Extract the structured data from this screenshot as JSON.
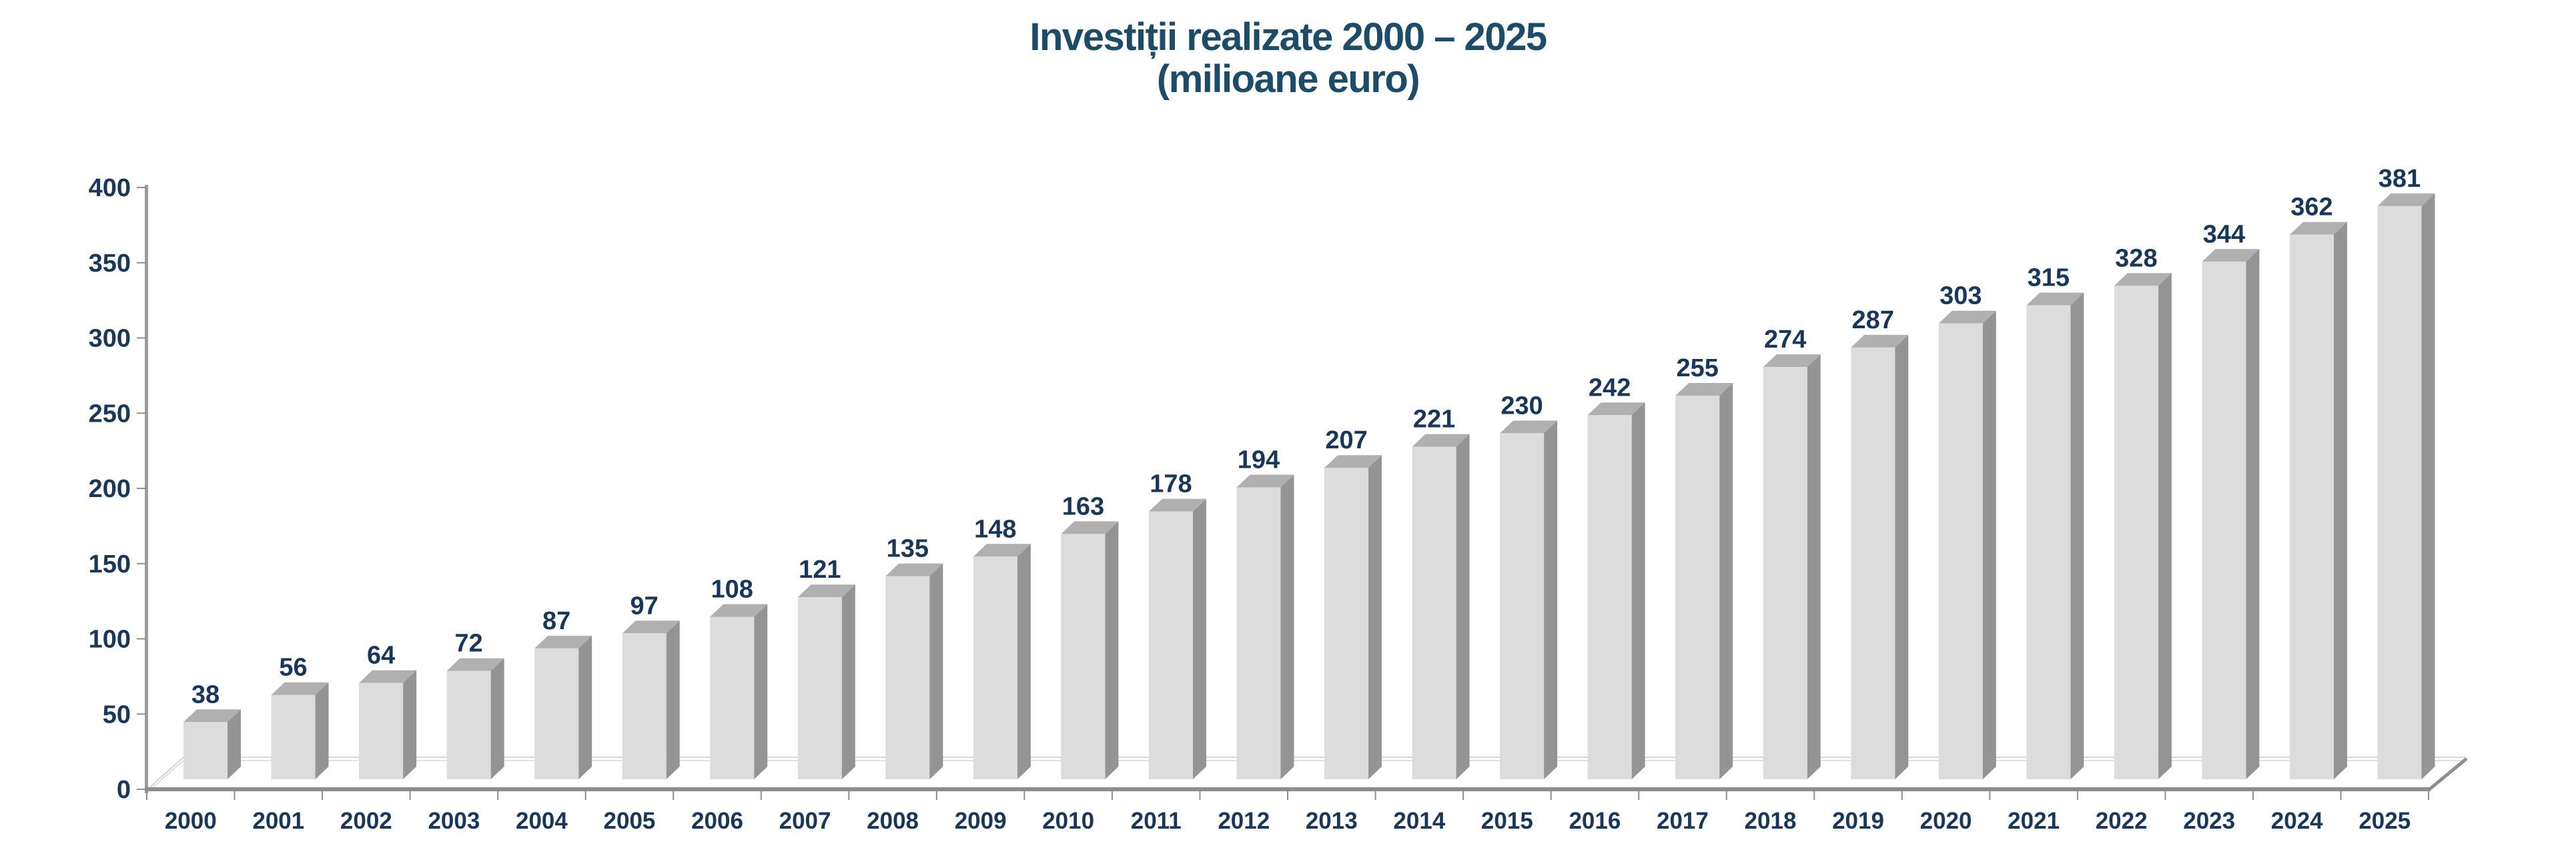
{
  "title": {
    "line1": "Investiții realizate 2000 – 2025",
    "line2": "(milioane euro)"
  },
  "chart_data": {
    "type": "bar",
    "effect": "3d-column",
    "title": "Investiții realizate 2000 – 2025",
    "subtitle": "(milioane euro)",
    "categories": [
      "2000",
      "2001",
      "2002",
      "2003",
      "2004",
      "2005",
      "2006",
      "2007",
      "2008",
      "2009",
      "2010",
      "2011",
      "2012",
      "2013",
      "2014",
      "2015",
      "2016",
      "2017",
      "2018",
      "2019",
      "2020",
      "2021",
      "2022",
      "2023",
      "2024",
      "2025"
    ],
    "values": [
      38,
      56,
      64,
      72,
      87,
      97,
      108,
      121,
      135,
      148,
      163,
      178,
      194,
      207,
      221,
      230,
      242,
      255,
      274,
      287,
      303,
      315,
      328,
      344,
      362,
      381
    ],
    "xlabel": "",
    "ylabel": "",
    "ylim": [
      0,
      400
    ],
    "yticks": [
      0,
      50,
      100,
      150,
      200,
      250,
      300,
      350,
      400
    ],
    "grid": false,
    "legend": "none",
    "data_labels": "above-bars",
    "colors": {
      "title_text": "#1B4D6A",
      "label_text": "#17375D",
      "bar_front": "#DCDCDC",
      "bar_top": "#B0B0B0",
      "bar_side": "#949494",
      "axis_line": "#8E8E8E",
      "y_axis_line": "#9C9C9C",
      "tick_line": "#8E8E8E",
      "floor_back_line": "#D8D8D8",
      "floor_left_edge": "#C6C6C6",
      "background": "#FFFFFF"
    }
  }
}
